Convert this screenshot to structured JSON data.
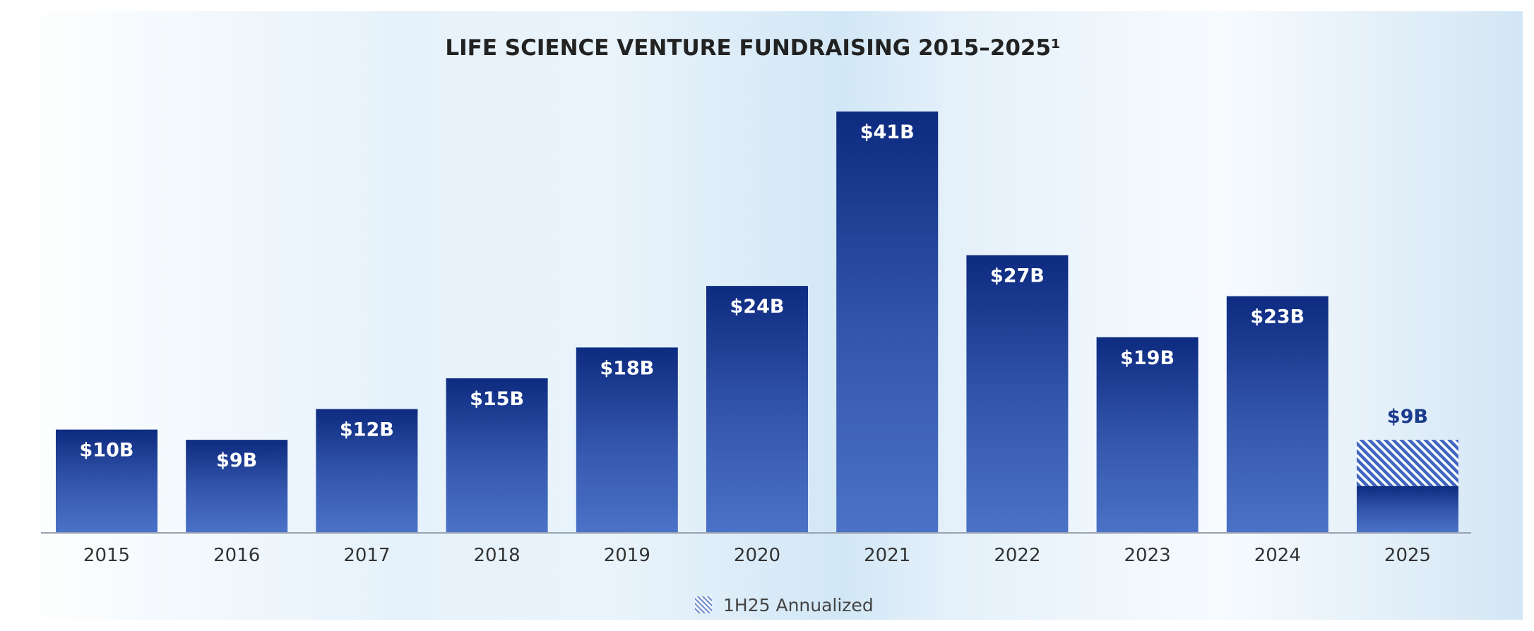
{
  "chart_data": {
    "type": "bar",
    "title": "LIFE SCIENCE VENTURE FUNDRAISING 2015–2025¹",
    "xlabel": "",
    "ylabel": "",
    "ylim": [
      0,
      41
    ],
    "categories": [
      "2015",
      "2016",
      "2017",
      "2018",
      "2019",
      "2020",
      "2021",
      "2022",
      "2023",
      "2024",
      "2025"
    ],
    "values": [
      10,
      9,
      12,
      15,
      18,
      24,
      41,
      27,
      19,
      23,
      9
    ],
    "value_labels": [
      "$10B",
      "$9B",
      "$12B",
      "$15B",
      "$18B",
      "$24B",
      "$41B",
      "$27B",
      "$19B",
      "$23B",
      "$9B"
    ],
    "partial": {
      "category": "2025",
      "actual_value": 4.5,
      "annotation": "1H25 Annualized"
    },
    "legend": {
      "placement": "bottom-center",
      "entries": [
        "1H25 Annualized"
      ]
    },
    "grid": false
  },
  "colors": {
    "bar_top": "#0d2b80",
    "bar_bottom": "#4a72c6",
    "label_dark": "#1a3a8c",
    "axis": "#9aa3b2",
    "text": "#333333",
    "bg_tint": "#d7e9f6"
  }
}
